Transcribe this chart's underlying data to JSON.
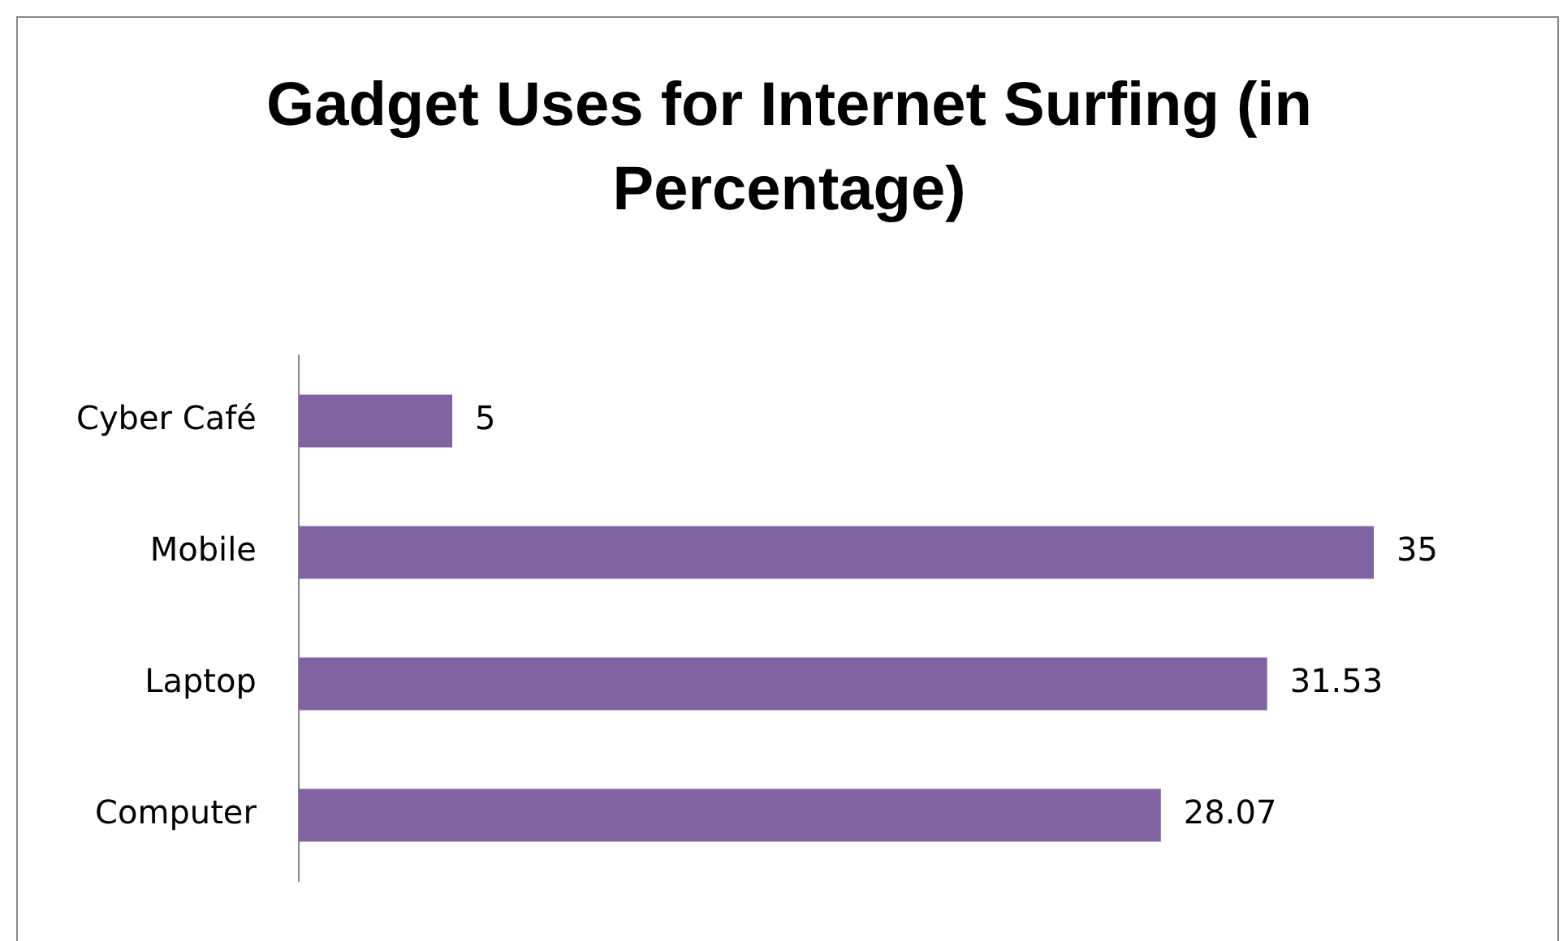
{
  "chart_data": {
    "type": "bar",
    "orientation": "horizontal",
    "title": "Gadget Uses for Internet Surfing (in Percentage)",
    "categories": [
      "Cyber Café",
      "Mobile",
      "Laptop",
      "Computer"
    ],
    "values": [
      5,
      35,
      31.53,
      28.07
    ],
    "color": "#8064a2",
    "data_labels": true,
    "grid": false,
    "legend": false
  }
}
